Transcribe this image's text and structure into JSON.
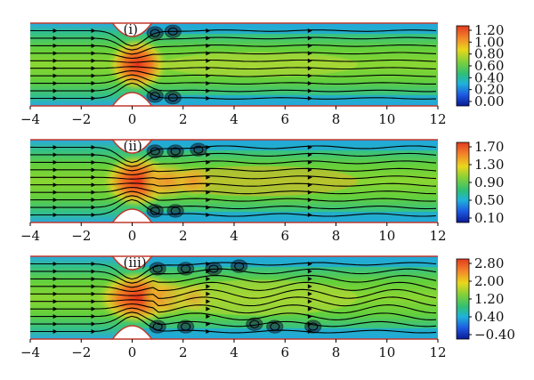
{
  "figure": {
    "panels": [
      {
        "label": "(i)",
        "x_ticks": [
          "−4",
          "−2",
          "0",
          "2",
          "4",
          "6",
          "8",
          "10",
          "12"
        ],
        "colorbar": {
          "ticks": [
            "1.20",
            "1.00",
            "0.80",
            "0.60",
            "0.40",
            "0.20",
            "0.00"
          ],
          "colors": [
            "#e8442a",
            "#f07a1e",
            "#e8d21e",
            "#8bd63a",
            "#39c46a",
            "#22b6d8",
            "#1a55e0",
            "#0b1f9c"
          ]
        }
      },
      {
        "label": "(ii)",
        "x_ticks": [
          "−4",
          "−2",
          "0",
          "2",
          "4",
          "6",
          "8",
          "10",
          "12"
        ],
        "colorbar": {
          "ticks": [
            "1.70",
            "1.30",
            "0.90",
            "0.50",
            "0.10"
          ],
          "colors": [
            "#e8442a",
            "#f07a1e",
            "#e8d21e",
            "#8bd63a",
            "#39c46a",
            "#22b6d8",
            "#1a55e0",
            "#0b1f9c"
          ]
        }
      },
      {
        "label": "(iii)",
        "x_ticks": [
          "−4",
          "−2",
          "0",
          "2",
          "4",
          "6",
          "8",
          "10",
          "12"
        ],
        "colorbar": {
          "ticks": [
            "2.80",
            "2.00",
            "1.20",
            "0.40",
            "−0.40"
          ],
          "colors": [
            "#e8442a",
            "#f07a1e",
            "#e8d21e",
            "#8bd63a",
            "#39c46a",
            "#22b6d8",
            "#1a55e0",
            "#0b1f9c"
          ]
        }
      }
    ]
  }
}
